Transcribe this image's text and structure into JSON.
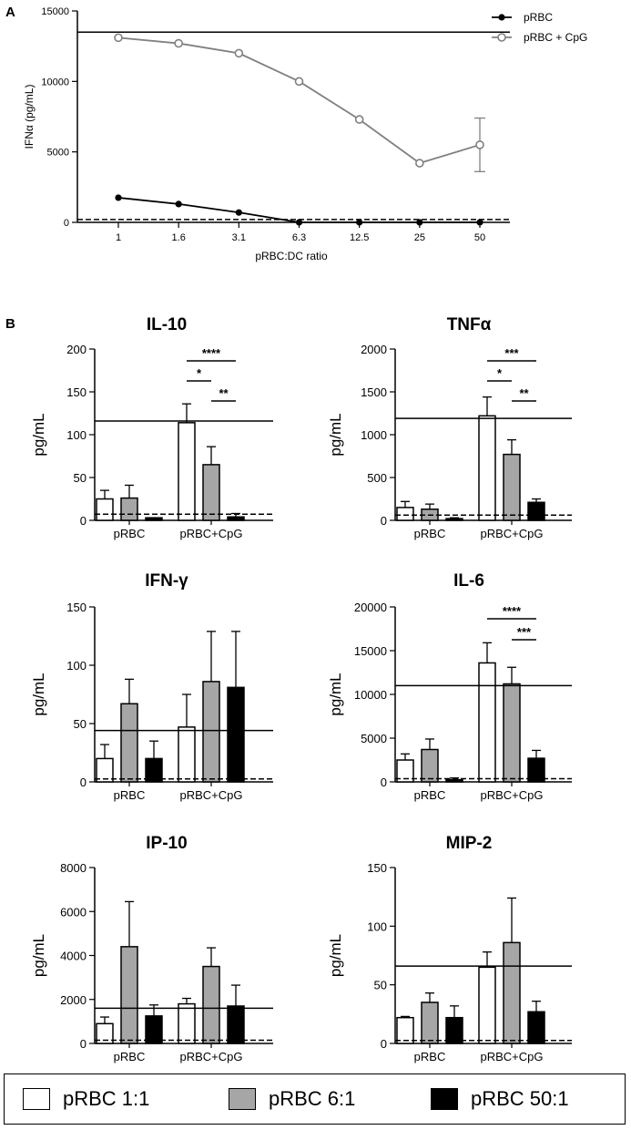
{
  "panels": {
    "a": "A",
    "b": "B"
  },
  "chart_data": [
    {
      "type": "line",
      "ylabel": "IFNα (pg/mL)",
      "xlabel": "pRBC:DC ratio",
      "x": [
        "1",
        "1.6",
        "3.1",
        "6.3",
        "12.5",
        "25",
        "50"
      ],
      "ylim": [
        0,
        15000
      ],
      "yticks": [
        0,
        5000,
        10000,
        15000
      ],
      "reference_line": 13500,
      "dashed_line": 200,
      "series": [
        {
          "name": "pRBC",
          "marker": "filled-circle",
          "color": "#000000",
          "values": [
            1750,
            1300,
            700,
            0,
            0,
            0,
            0
          ]
        },
        {
          "name": "pRBC + CpG",
          "marker": "open-circle",
          "color": "#808080",
          "values": [
            13100,
            12700,
            12000,
            10000,
            7300,
            4200,
            5500
          ],
          "errors_upper": [
            0,
            0,
            0,
            0,
            0,
            0,
            1900
          ],
          "errors_lower": [
            0,
            0,
            0,
            0,
            0,
            0,
            1900
          ]
        }
      ]
    },
    {
      "type": "bar",
      "title": "IL-10",
      "ylabel": "pg/mL",
      "groups": [
        "pRBC",
        "pRBC+CpG"
      ],
      "ylim": [
        0,
        200
      ],
      "yticks": [
        0,
        50,
        100,
        150,
        200
      ],
      "reference_line": 116,
      "dashed_line": 5,
      "series": [
        {
          "name": "pRBC 1:1",
          "values": [
            25,
            114
          ],
          "errors": [
            10,
            22
          ]
        },
        {
          "name": "pRBC 6:1",
          "values": [
            26,
            65
          ],
          "errors": [
            15,
            21
          ]
        },
        {
          "name": "pRBC 50:1",
          "values": [
            3,
            4
          ],
          "errors": [
            0,
            4
          ]
        }
      ],
      "significance": [
        {
          "label": "****",
          "from": 0,
          "to": 2,
          "level": 0
        },
        {
          "label": "*",
          "from": 0,
          "to": 1,
          "level": 1
        },
        {
          "label": "**",
          "from": 1,
          "to": 2,
          "level": 2
        }
      ]
    },
    {
      "type": "bar",
      "title": "TNFα",
      "ylabel": "pg/mL",
      "groups": [
        "pRBC",
        "pRBC+CpG"
      ],
      "ylim": [
        0,
        2000
      ],
      "yticks": [
        0,
        500,
        1000,
        1500,
        2000
      ],
      "reference_line": 1190,
      "dashed_line": 40,
      "series": [
        {
          "name": "pRBC 1:1",
          "values": [
            150,
            1220
          ],
          "errors": [
            70,
            220
          ]
        },
        {
          "name": "pRBC 6:1",
          "values": [
            130,
            770
          ],
          "errors": [
            60,
            170
          ]
        },
        {
          "name": "pRBC 50:1",
          "values": [
            20,
            210
          ],
          "errors": [
            10,
            40
          ]
        }
      ],
      "significance": [
        {
          "label": "***",
          "from": 0,
          "to": 2,
          "level": 0
        },
        {
          "label": "*",
          "from": 0,
          "to": 1,
          "level": 1
        },
        {
          "label": "**",
          "from": 1,
          "to": 2,
          "level": 2
        }
      ]
    },
    {
      "type": "bar",
      "title": "IFN-γ",
      "ylabel": "pg/mL",
      "groups": [
        "pRBC",
        "pRBC+CpG"
      ],
      "ylim": [
        0,
        150
      ],
      "yticks": [
        0,
        50,
        100,
        150
      ],
      "reference_line": 44,
      "dashed_line": 1,
      "series": [
        {
          "name": "pRBC 1:1",
          "values": [
            20,
            47
          ],
          "errors": [
            12,
            28
          ]
        },
        {
          "name": "pRBC 6:1",
          "values": [
            67,
            86
          ],
          "errors": [
            21,
            43
          ]
        },
        {
          "name": "pRBC 50:1",
          "values": [
            20,
            81
          ],
          "errors": [
            15,
            48
          ]
        }
      ],
      "significance": []
    },
    {
      "type": "bar",
      "title": "IL-6",
      "ylabel": "pg/mL",
      "groups": [
        "pRBC",
        "pRBC+CpG"
      ],
      "ylim": [
        0,
        20000
      ],
      "yticks": [
        0,
        5000,
        10000,
        15000,
        20000
      ],
      "reference_line": 11000,
      "dashed_line": 150,
      "series": [
        {
          "name": "pRBC 1:1",
          "values": [
            2500,
            13600
          ],
          "errors": [
            700,
            2300
          ]
        },
        {
          "name": "pRBC 6:1",
          "values": [
            3700,
            11200
          ],
          "errors": [
            1200,
            1900
          ]
        },
        {
          "name": "pRBC 50:1",
          "values": [
            250,
            2700
          ],
          "errors": [
            200,
            900
          ]
        }
      ],
      "significance": [
        {
          "label": "****",
          "from": 0,
          "to": 2,
          "level": 0
        },
        {
          "label": "***",
          "from": 1,
          "to": 2,
          "level": 1
        }
      ]
    },
    {
      "type": "bar",
      "title": "IP-10",
      "ylabel": "pg/mL",
      "groups": [
        "pRBC",
        "pRBC+CpG"
      ],
      "ylim": [
        0,
        8000
      ],
      "yticks": [
        0,
        2000,
        4000,
        6000,
        8000
      ],
      "reference_line": 1600,
      "dashed_line": 60,
      "series": [
        {
          "name": "pRBC 1:1",
          "values": [
            900,
            1800
          ],
          "errors": [
            300,
            250
          ]
        },
        {
          "name": "pRBC 6:1",
          "values": [
            4400,
            3500
          ],
          "errors": [
            2050,
            850
          ]
        },
        {
          "name": "pRBC 50:1",
          "values": [
            1250,
            1700
          ],
          "errors": [
            500,
            950
          ]
        }
      ],
      "significance": []
    },
    {
      "type": "bar",
      "title": "MIP-2",
      "ylabel": "pg/mL",
      "groups": [
        "pRBC",
        "pRBC+CpG"
      ],
      "ylim": [
        0,
        150
      ],
      "yticks": [
        0,
        50,
        100,
        150
      ],
      "reference_line": 66,
      "dashed_line": 1,
      "series": [
        {
          "name": "pRBC 1:1",
          "values": [
            22,
            65
          ],
          "errors": [
            1,
            13
          ]
        },
        {
          "name": "pRBC 6:1",
          "values": [
            35,
            86
          ],
          "errors": [
            8,
            38
          ]
        },
        {
          "name": "pRBC 50:1",
          "values": [
            22,
            27
          ],
          "errors": [
            10,
            9
          ]
        }
      ],
      "significance": []
    }
  ],
  "legend": [
    {
      "label": "pRBC 1:1",
      "fill": "#ffffff"
    },
    {
      "label": "pRBC 6:1",
      "fill": "#a6a6a6"
    },
    {
      "label": "pRBC 50:1",
      "fill": "#000000"
    }
  ]
}
